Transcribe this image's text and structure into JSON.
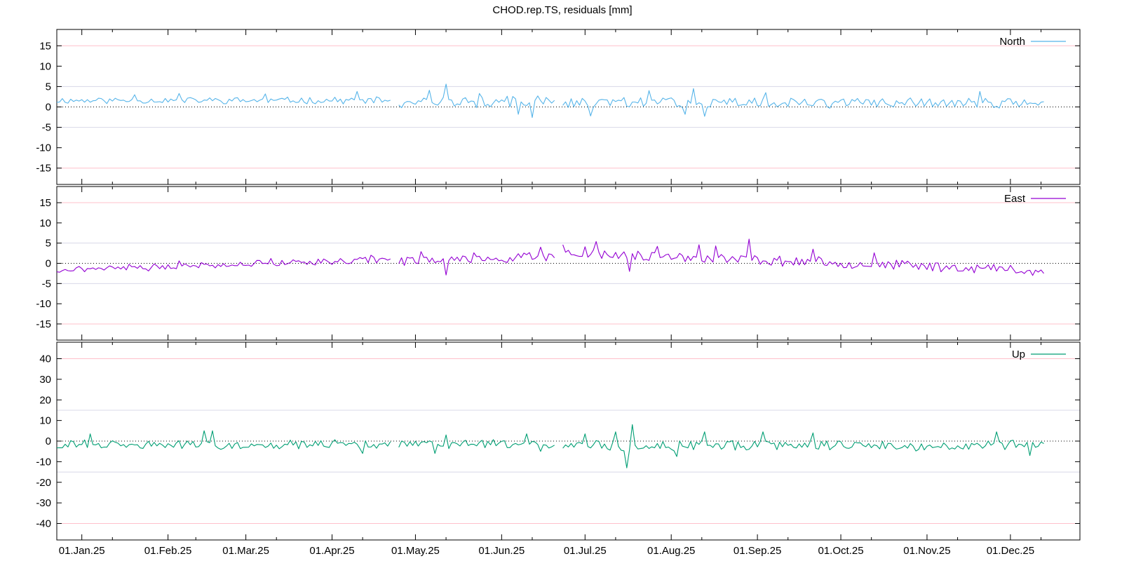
{
  "title": "CHOD.rep.TS, residuals [mm]",
  "x_axis": {
    "start": "2024-12-23",
    "end": "2025-12-26",
    "ticks": [
      {
        "date": "2025-01-01",
        "label": "01.Jan.25"
      },
      {
        "date": "2025-02-01",
        "label": "01.Feb.25"
      },
      {
        "date": "2025-03-01",
        "label": "01.Mar.25"
      },
      {
        "date": "2025-04-01",
        "label": "01.Apr.25"
      },
      {
        "date": "2025-05-01",
        "label": "01.May.25"
      },
      {
        "date": "2025-06-01",
        "label": "01.Jun.25"
      },
      {
        "date": "2025-07-01",
        "label": "01.Jul.25"
      },
      {
        "date": "2025-08-01",
        "label": "01.Aug.25"
      },
      {
        "date": "2025-09-01",
        "label": "01.Sep.25"
      },
      {
        "date": "2025-10-01",
        "label": "01.Oct.25"
      },
      {
        "date": "2025-11-01",
        "label": "01.Nov.25"
      },
      {
        "date": "2025-12-01",
        "label": "01.Dec.25"
      }
    ],
    "minor_tick_dates": [
      "2025-01-12",
      "2025-02-11",
      "2025-03-12",
      "2025-04-12",
      "2025-05-12",
      "2025-06-12",
      "2025-07-12",
      "2025-08-12",
      "2025-09-12",
      "2025-10-12",
      "2025-11-12",
      "2025-12-12"
    ]
  },
  "colors": {
    "North": "#56b4e9",
    "East": "#9400d3",
    "Up": "#009e73",
    "limit_line": "#ffc0cb",
    "grid_line": "#d8d8e8",
    "zero_line": "#000000"
  },
  "chart_data": [
    {
      "type": "line",
      "name": "North",
      "legend": "North",
      "ylim": [
        -19,
        19
      ],
      "yticks": [
        15,
        10,
        5,
        0,
        -5,
        -10,
        -15
      ],
      "ytick_labels": [
        "15",
        "10",
        "5",
        "0",
        "-5",
        "-10",
        "-15"
      ],
      "limit_lines": [
        15,
        -15
      ],
      "grid_lines": [
        5,
        -5
      ],
      "legend_position": "top-right",
      "segments": [
        {
          "start": "2024-12-23",
          "end": "2025-04-22",
          "baseline": 1.6,
          "amplitude": 0.7,
          "seed": 11,
          "spikes": [
            {
              "date": "2025-01-20",
              "value": 3.0
            },
            {
              "date": "2025-02-05",
              "value": 3.3
            },
            {
              "date": "2025-03-08",
              "value": 3.2
            },
            {
              "date": "2025-04-10",
              "value": 3.8
            }
          ]
        },
        {
          "start": "2025-04-25",
          "end": "2025-06-20",
          "baseline": 1.2,
          "amplitude": 1.2,
          "seed": 12,
          "spikes": [
            {
              "date": "2025-05-06",
              "value": 4.1
            },
            {
              "date": "2025-05-12",
              "value": 5.6
            },
            {
              "date": "2025-05-24",
              "value": 3.3
            },
            {
              "date": "2025-06-07",
              "value": -1.8
            },
            {
              "date": "2025-06-12",
              "value": -2.6
            }
          ]
        },
        {
          "start": "2025-06-23",
          "end": "2025-12-13",
          "baseline": 1.0,
          "amplitude": 1.1,
          "seed": 13,
          "spikes": [
            {
              "date": "2025-07-03",
              "value": -2.2
            },
            {
              "date": "2025-07-15",
              "value": 2.3
            },
            {
              "date": "2025-07-24",
              "value": 4.0
            },
            {
              "date": "2025-08-06",
              "value": -1.8
            },
            {
              "date": "2025-08-09",
              "value": 4.5
            },
            {
              "date": "2025-08-13",
              "value": -2.3
            },
            {
              "date": "2025-09-04",
              "value": 3.5
            },
            {
              "date": "2025-11-20",
              "value": 3.8
            }
          ]
        }
      ]
    },
    {
      "type": "line",
      "name": "East",
      "legend": "East",
      "ylim": [
        -19,
        19
      ],
      "yticks": [
        15,
        10,
        5,
        0,
        -5,
        -10,
        -15
      ],
      "ytick_labels": [
        "15",
        "10",
        "5",
        "0",
        "-5",
        "-10",
        "-15"
      ],
      "limit_lines": [
        15,
        -15
      ],
      "grid_lines": [
        5,
        -5
      ],
      "legend_position": "top-right",
      "segments": [
        {
          "start": "2024-12-23",
          "end": "2025-04-22",
          "baseline_start": -1.6,
          "baseline_end": 1.0,
          "amplitude": 0.7,
          "seed": 21,
          "spikes": [
            {
              "date": "2024-12-24",
              "value": -2.2
            },
            {
              "date": "2025-01-25",
              "value": -1.9
            },
            {
              "date": "2025-02-05",
              "value": 0.6
            },
            {
              "date": "2025-03-10",
              "value": 1.2
            },
            {
              "date": "2025-04-15",
              "value": 2.0
            }
          ]
        },
        {
          "start": "2025-04-25",
          "end": "2025-06-20",
          "baseline_start": 0.6,
          "baseline_end": 1.6,
          "amplitude": 1.0,
          "seed": 22,
          "spikes": [
            {
              "date": "2025-05-03",
              "value": 2.9
            },
            {
              "date": "2025-05-12",
              "value": -2.9
            },
            {
              "date": "2025-05-22",
              "value": 2.6
            },
            {
              "date": "2025-06-15",
              "value": 4.0
            }
          ]
        },
        {
          "start": "2025-06-23",
          "end": "2025-12-13",
          "baseline_start": 2.6,
          "baseline_end": -1.8,
          "amplitude": 1.1,
          "seed": 23,
          "spikes": [
            {
              "date": "2025-06-23",
              "value": 4.6
            },
            {
              "date": "2025-07-01",
              "value": 4.1
            },
            {
              "date": "2025-07-05",
              "value": 5.4
            },
            {
              "date": "2025-07-17",
              "value": -2.0
            },
            {
              "date": "2025-07-20",
              "value": 3.0
            },
            {
              "date": "2025-07-27",
              "value": 4.2
            },
            {
              "date": "2025-08-11",
              "value": 4.6
            },
            {
              "date": "2025-08-17",
              "value": 4.3
            },
            {
              "date": "2025-08-29",
              "value": 6.0
            },
            {
              "date": "2025-09-21",
              "value": 3.5
            },
            {
              "date": "2025-10-13",
              "value": 2.6
            },
            {
              "date": "2025-12-09",
              "value": -3.0
            },
            {
              "date": "2025-12-13",
              "value": -2.5
            }
          ]
        }
      ]
    },
    {
      "type": "line",
      "name": "Up",
      "legend": "Up",
      "ylim": [
        -48,
        48
      ],
      "yticks": [
        40,
        30,
        20,
        10,
        0,
        -10,
        -20,
        -30,
        -40
      ],
      "ytick_labels": [
        "40",
        "30",
        "20",
        "10",
        "0",
        "-10",
        "-20",
        "-30",
        "-40"
      ],
      "limit_lines": [
        40,
        -40
      ],
      "grid_lines": [
        15,
        -15
      ],
      "legend_position": "top-right",
      "segments": [
        {
          "start": "2024-12-23",
          "end": "2025-04-22",
          "baseline": -1.8,
          "amplitude": 2.0,
          "seed": 31,
          "spikes": [
            {
              "date": "2025-01-04",
              "value": 3.5
            },
            {
              "date": "2025-02-14",
              "value": 5.0
            },
            {
              "date": "2025-02-17",
              "value": 5.0
            },
            {
              "date": "2025-04-12",
              "value": -6.0
            }
          ]
        },
        {
          "start": "2025-04-25",
          "end": "2025-06-20",
          "baseline": -1.5,
          "amplitude": 2.2,
          "seed": 32,
          "spikes": [
            {
              "date": "2025-05-08",
              "value": -6.0
            },
            {
              "date": "2025-05-12",
              "value": 3.0
            },
            {
              "date": "2025-06-10",
              "value": 3.5
            },
            {
              "date": "2025-06-15",
              "value": -5.0
            }
          ]
        },
        {
          "start": "2025-06-23",
          "end": "2025-12-13",
          "baseline": -2.0,
          "amplitude": 2.3,
          "seed": 33,
          "spikes": [
            {
              "date": "2025-07-01",
              "value": 3.5
            },
            {
              "date": "2025-07-12",
              "value": 4.5
            },
            {
              "date": "2025-07-16",
              "value": -13.0
            },
            {
              "date": "2025-07-18",
              "value": 8.0
            },
            {
              "date": "2025-08-03",
              "value": -7.5
            },
            {
              "date": "2025-08-13",
              "value": 4.5
            },
            {
              "date": "2025-09-03",
              "value": 4.5
            },
            {
              "date": "2025-09-21",
              "value": 4.0
            },
            {
              "date": "2025-11-26",
              "value": 4.5
            },
            {
              "date": "2025-12-08",
              "value": -7.0
            }
          ]
        }
      ]
    }
  ]
}
